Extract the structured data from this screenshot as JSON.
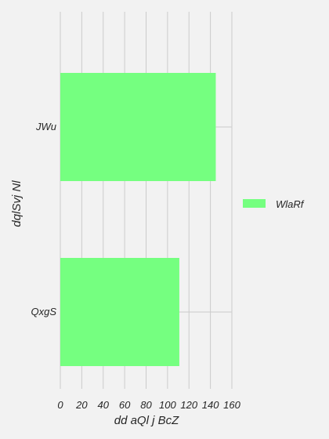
{
  "chart_data": {
    "type": "bar",
    "orientation": "horizontal",
    "categories": [
      "JWu",
      "QxgS"
    ],
    "series": [
      {
        "name": "WlaRf",
        "values": [
          145,
          111
        ],
        "color": "#75ff80"
      }
    ],
    "xlabel": "dd  aQl j BcZ",
    "ylabel": "dqlSvj Nl",
    "xlim": [
      0,
      160
    ],
    "xticks": [
      0,
      20,
      40,
      60,
      80,
      100,
      120,
      140,
      160
    ],
    "grid": true,
    "legend_position": "right",
    "background": "#f2f2f2",
    "grid_color": "#cbcbcb"
  }
}
